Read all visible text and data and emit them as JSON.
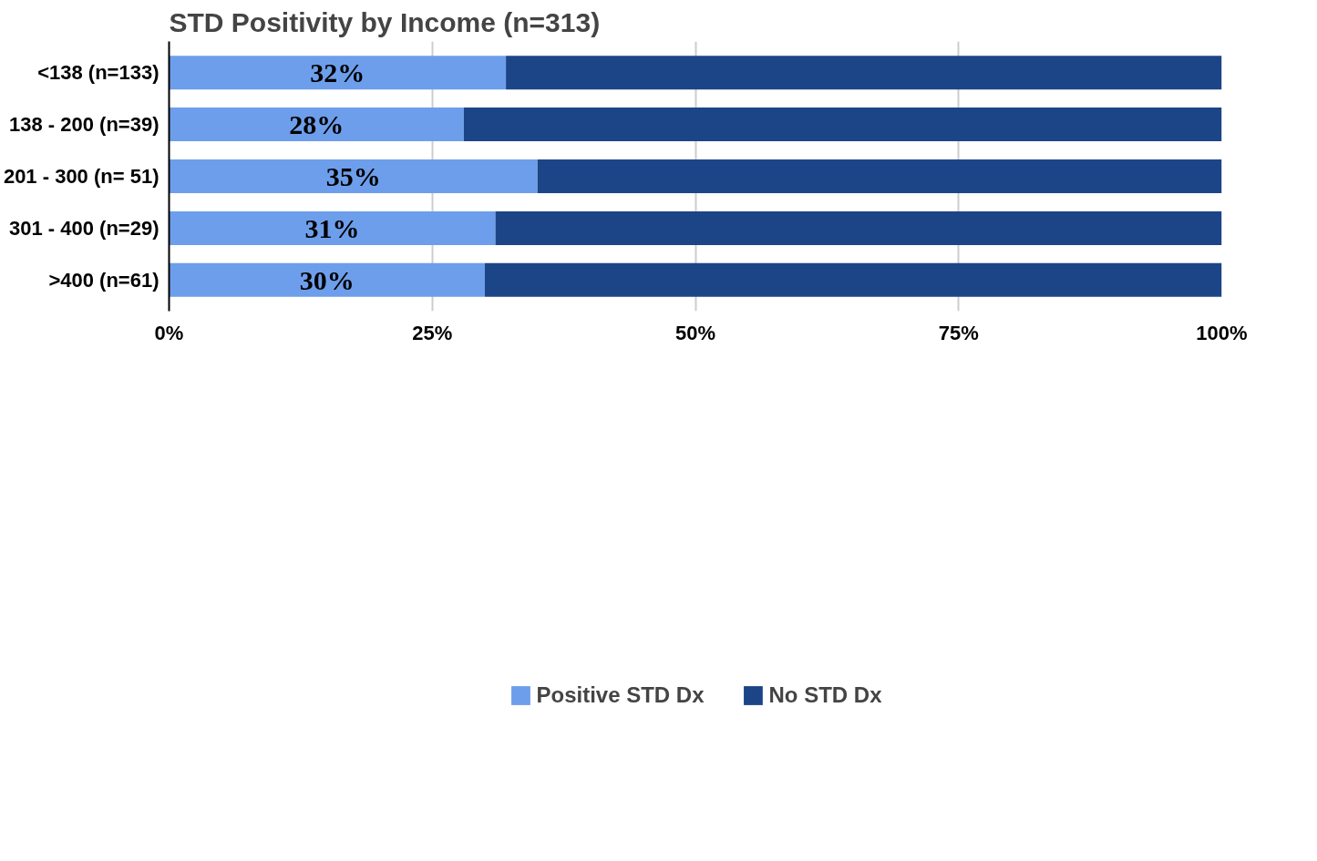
{
  "chart_data": {
    "type": "bar",
    "orientation": "horizontal",
    "stacked": true,
    "title": "STD Positivity by Income (n=313)",
    "categories": [
      "<138 (n=133)",
      "138 - 200 (n=39)",
      "201 - 300 (n= 51)",
      "301 - 400 (n=29)",
      ">400 (n=61)"
    ],
    "series": [
      {
        "name": "Positive STD Dx",
        "color": "#6d9eeb",
        "values": [
          32,
          28,
          35,
          31,
          30
        ],
        "value_labels": [
          "32%",
          "28%",
          "35%",
          "31%",
          "30%"
        ]
      },
      {
        "name": "No STD Dx",
        "color": "#1c4587",
        "values": [
          68,
          72,
          65,
          69,
          70
        ]
      }
    ],
    "xlim": [
      0,
      100
    ],
    "xticks": [
      {
        "value": 0,
        "label": "0%"
      },
      {
        "value": 25,
        "label": "25%"
      },
      {
        "value": 50,
        "label": "50%"
      },
      {
        "value": 75,
        "label": "75%"
      },
      {
        "value": 100,
        "label": "100%"
      }
    ],
    "grid": "x",
    "legend": "bottom"
  }
}
